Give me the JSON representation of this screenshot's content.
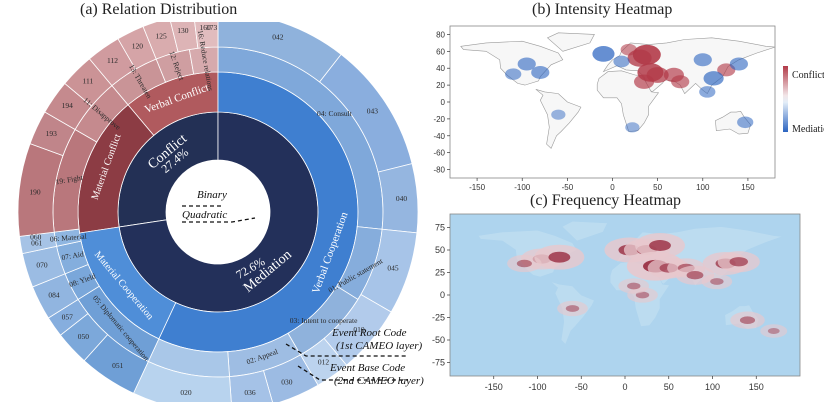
{
  "titles": {
    "a": "(a) Relation Distribution",
    "b": "(b) Intensity Heatmap",
    "c": "(c) Frequency Heatmap"
  },
  "colors": {
    "conflict_dark": "#233055",
    "mediation_dark": "#23305a",
    "verbal_conflict": "#b05a5e",
    "material_conflict": "#8c3c44",
    "verbal_cooperation": "#3f7fd0",
    "material_cooperation": "#4f8ed8",
    "conflict_outer": "#c58a8e",
    "coop_outer": "#8fb2dc",
    "coop_outer_light": "#b8d3ee",
    "ocean": "#aed4ee",
    "land_b": "#f7f7f7"
  },
  "chart_data": [
    {
      "type": "sunburst",
      "title": "(a) Relation Distribution",
      "inner_ring": [
        {
          "name": "Conflict",
          "share": 27.4,
          "value_label": "27.4%"
        },
        {
          "name": "Mediation",
          "share": 72.6,
          "value_label": "72.6%"
        }
      ],
      "middle_ring": [
        {
          "name": "Verbal Conflict",
          "parent": "Conflict"
        },
        {
          "name": "Material Conflict",
          "parent": "Conflict"
        },
        {
          "name": "Verbal Cooperation",
          "parent": "Mediation"
        },
        {
          "name": "Material Cooperation",
          "parent": "Mediation"
        }
      ],
      "root_code_labels": [
        "04: Consult",
        "03: Intent to cooperate",
        "02: Appeal",
        "01: Public statement",
        "05: Diplomatic cooperation",
        "08: Yield",
        "07: Aid",
        "06: Material",
        "19: Fight",
        "11: Disapprove",
        "13: Threaten",
        "12: Reject",
        "16: Reduce relations"
      ],
      "base_code_labels": [
        "042",
        "043",
        "040",
        "045",
        "010",
        "012",
        "036",
        "030",
        "020",
        "051",
        "050",
        "057",
        "084",
        "070",
        "061",
        "060",
        "190",
        "193",
        "194",
        "111",
        "112",
        "120",
        "125",
        "130",
        "160",
        "173"
      ],
      "center_labels": [
        "Binary",
        "Quadratic"
      ],
      "annotations": [
        "Event Root Code",
        "(1st CAMEO layer)",
        "Event Base Code",
        "(2nd CAMEO layer)"
      ]
    },
    {
      "type": "heatmap",
      "title": "(b) Intensity Heatmap",
      "x_ticks": [
        -150,
        -100,
        -50,
        0,
        50,
        100,
        150
      ],
      "y_ticks": [
        80,
        60,
        40,
        20,
        0,
        -20,
        -40,
        -60,
        -80
      ],
      "xlim": [
        -180,
        180
      ],
      "ylim": [
        -90,
        90
      ],
      "colorbar_labels": [
        "Conflict",
        "Mediation"
      ],
      "hotspots": [
        {
          "lon": 38,
          "lat": 56,
          "intensity": 1.0
        },
        {
          "lon": 30,
          "lat": 52,
          "intensity": 0.8
        },
        {
          "lon": 42,
          "lat": 35,
          "intensity": 0.9
        },
        {
          "lon": 50,
          "lat": 32,
          "intensity": 0.7
        },
        {
          "lon": 35,
          "lat": 24,
          "intensity": 0.6
        },
        {
          "lon": 68,
          "lat": 32,
          "intensity": 0.6
        },
        {
          "lon": 75,
          "lat": 24,
          "intensity": 0.5
        },
        {
          "lon": 126,
          "lat": 38,
          "intensity": 0.5
        },
        {
          "lon": 18,
          "lat": 62,
          "intensity": 0.4
        },
        {
          "lon": -10,
          "lat": 57,
          "intensity": -0.7
        },
        {
          "lon": -95,
          "lat": 45,
          "intensity": -0.5
        },
        {
          "lon": -80,
          "lat": 35,
          "intensity": -0.5
        },
        {
          "lon": -110,
          "lat": 33,
          "intensity": -0.4
        },
        {
          "lon": 10,
          "lat": 48,
          "intensity": -0.4
        },
        {
          "lon": 100,
          "lat": 50,
          "intensity": -0.5
        },
        {
          "lon": 112,
          "lat": 28,
          "intensity": -0.6
        },
        {
          "lon": 105,
          "lat": 12,
          "intensity": -0.4
        },
        {
          "lon": 140,
          "lat": 45,
          "intensity": -0.5
        },
        {
          "lon": 147,
          "lat": -24,
          "intensity": -0.4
        },
        {
          "lon": 22,
          "lat": -30,
          "intensity": -0.3
        },
        {
          "lon": -60,
          "lat": -15,
          "intensity": -0.3
        }
      ]
    },
    {
      "type": "heatmap",
      "title": "(c) Frequency Heatmap",
      "x_ticks": [
        -150,
        -100,
        -50,
        0,
        50,
        100,
        150
      ],
      "y_ticks": [
        75,
        50,
        25,
        0,
        -25,
        -50,
        -75
      ],
      "xlim": [
        -200,
        200
      ],
      "ylim": [
        -90,
        90
      ],
      "hotspots": [
        {
          "lon": -95,
          "lat": 40,
          "value": 0.6
        },
        {
          "lon": -75,
          "lat": 42,
          "value": 0.8
        },
        {
          "lon": -115,
          "lat": 35,
          "value": 0.4
        },
        {
          "lon": 5,
          "lat": 50,
          "value": 0.8
        },
        {
          "lon": 25,
          "lat": 50,
          "value": 0.7
        },
        {
          "lon": 40,
          "lat": 55,
          "value": 0.8
        },
        {
          "lon": 35,
          "lat": 32,
          "value": 1.0
        },
        {
          "lon": 50,
          "lat": 30,
          "value": 0.6
        },
        {
          "lon": 70,
          "lat": 30,
          "value": 0.5
        },
        {
          "lon": 80,
          "lat": 22,
          "value": 0.5
        },
        {
          "lon": 115,
          "lat": 35,
          "value": 0.7
        },
        {
          "lon": 130,
          "lat": 37,
          "value": 0.6
        },
        {
          "lon": 105,
          "lat": 15,
          "value": 0.3
        },
        {
          "lon": 20,
          "lat": 0,
          "value": 0.3
        },
        {
          "lon": 10,
          "lat": 10,
          "value": 0.3
        },
        {
          "lon": -60,
          "lat": -15,
          "value": 0.3
        },
        {
          "lon": 140,
          "lat": -28,
          "value": 0.4
        },
        {
          "lon": 170,
          "lat": -40,
          "value": 0.2
        }
      ]
    }
  ]
}
